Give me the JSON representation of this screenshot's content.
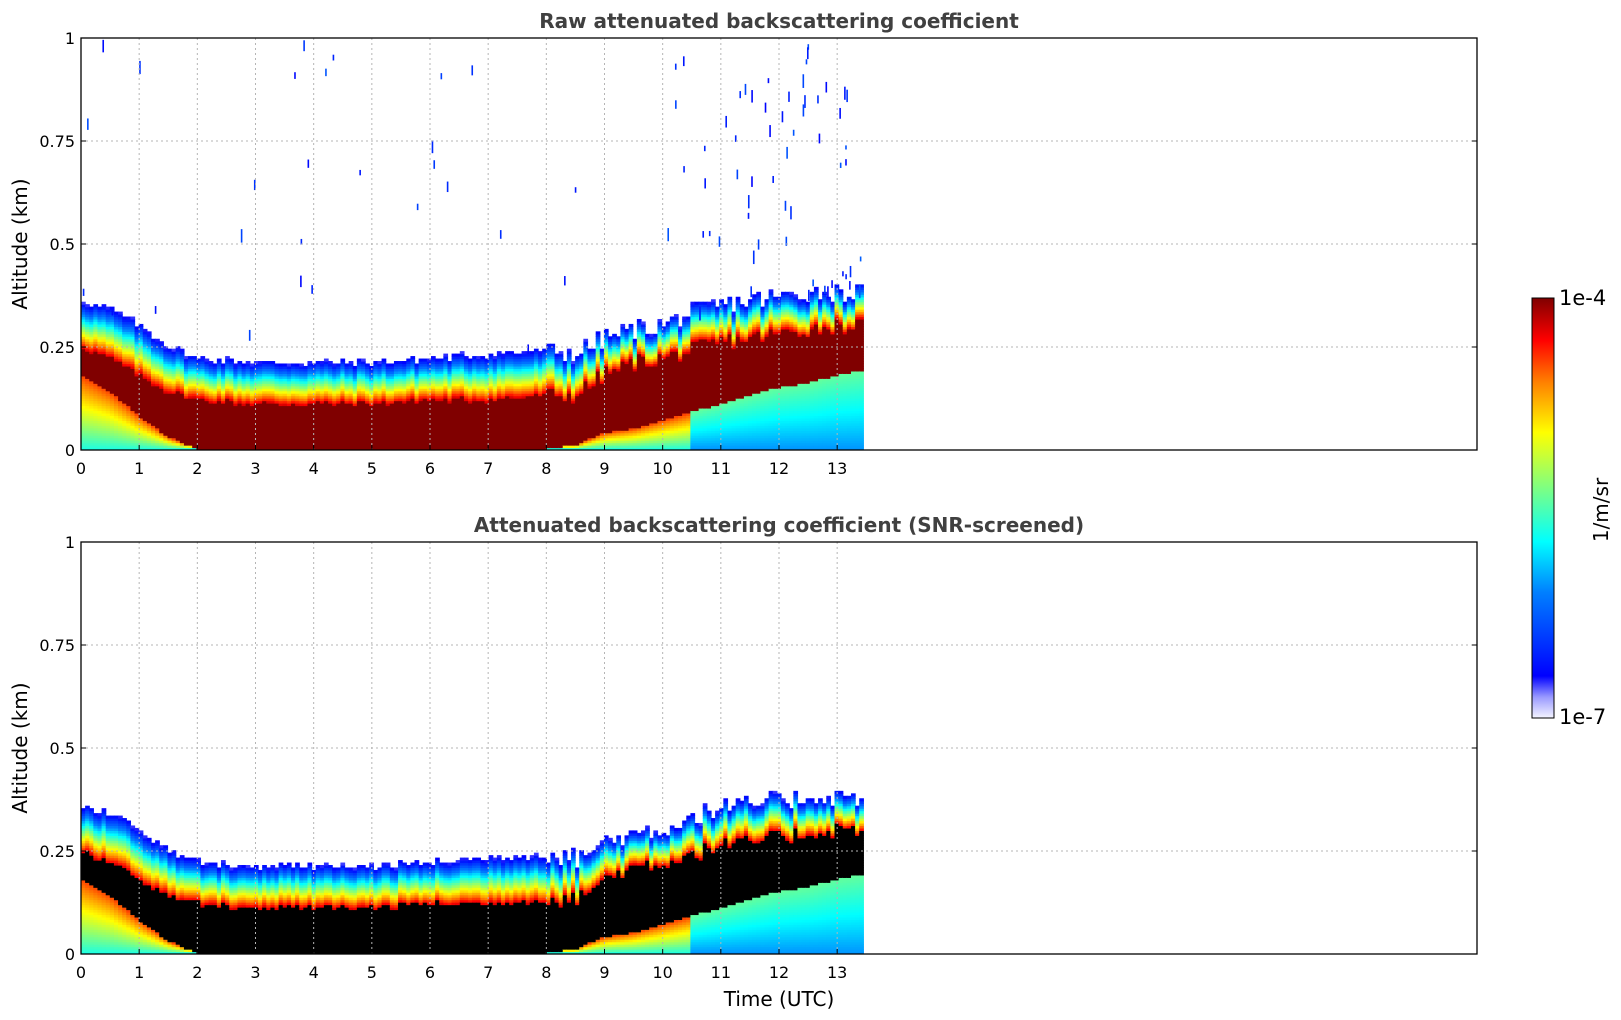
{
  "chart_data": [
    {
      "type": "heatmap",
      "title": "Raw attenuated backscattering coefficient",
      "xlabel": "",
      "ylabel": "Altitude (km)",
      "xlim": [
        0,
        24
      ],
      "ylim": [
        0,
        1
      ],
      "xticks": [
        "0",
        "1",
        "2",
        "3",
        "4",
        "5",
        "6",
        "7",
        "8",
        "9",
        "10",
        "11",
        "12",
        "13"
      ],
      "yticks": [
        "0",
        "0.25",
        "0.5",
        "0.75",
        "1"
      ],
      "data_end_time": 13.45,
      "grid": true,
      "profile": {
        "time": [
          0,
          0.5,
          1,
          1.5,
          2,
          3,
          4,
          5,
          6,
          7,
          8,
          8.5,
          9,
          9.5,
          10,
          10.5,
          11,
          11.5,
          12,
          12.5,
          13,
          13.45
        ],
        "layer_top_km": [
          0.36,
          0.34,
          0.3,
          0.25,
          0.22,
          0.21,
          0.21,
          0.21,
          0.22,
          0.23,
          0.24,
          0.23,
          0.27,
          0.29,
          0.3,
          0.33,
          0.35,
          0.36,
          0.37,
          0.38,
          0.38,
          0.38
        ],
        "peak_top_km": [
          0.25,
          0.22,
          0.18,
          0.14,
          0.12,
          0.11,
          0.11,
          0.11,
          0.12,
          0.12,
          0.13,
          0.13,
          0.18,
          0.21,
          0.22,
          0.24,
          0.26,
          0.27,
          0.28,
          0.29,
          0.3,
          0.3
        ],
        "peak_bottom_km": [
          0.18,
          0.14,
          0.08,
          0.03,
          0.0,
          0.0,
          0.0,
          0.0,
          0.0,
          0.0,
          0.0,
          0.01,
          0.04,
          0.05,
          0.07,
          0.09,
          0.11,
          0.13,
          0.15,
          0.16,
          0.18,
          0.19
        ]
      }
    },
    {
      "type": "heatmap",
      "title": "Attenuated backscattering coefficient (SNR-screened)",
      "xlabel": "Time (UTC)",
      "ylabel": "Altitude (km)",
      "xlim": [
        0,
        24
      ],
      "ylim": [
        0,
        1
      ],
      "xticks": [
        "0",
        "1",
        "2",
        "3",
        "4",
        "5",
        "6",
        "7",
        "8",
        "9",
        "10",
        "11",
        "12",
        "13"
      ],
      "yticks": [
        "0",
        "0.25",
        "0.5",
        "0.75",
        "1"
      ],
      "data_end_time": 13.45,
      "grid": true,
      "saturated_color": "#000000"
    }
  ],
  "colorbar": {
    "label": "1/m/sr",
    "max_label": "1e-4",
    "min_label": "1e-7",
    "colormap": "jet",
    "colors": [
      "#eeeeff",
      "#c8c8ff",
      "#0000ff",
      "#0080ff",
      "#00ffff",
      "#80ff80",
      "#ffff00",
      "#ff8000",
      "#ff0000",
      "#800000"
    ]
  }
}
